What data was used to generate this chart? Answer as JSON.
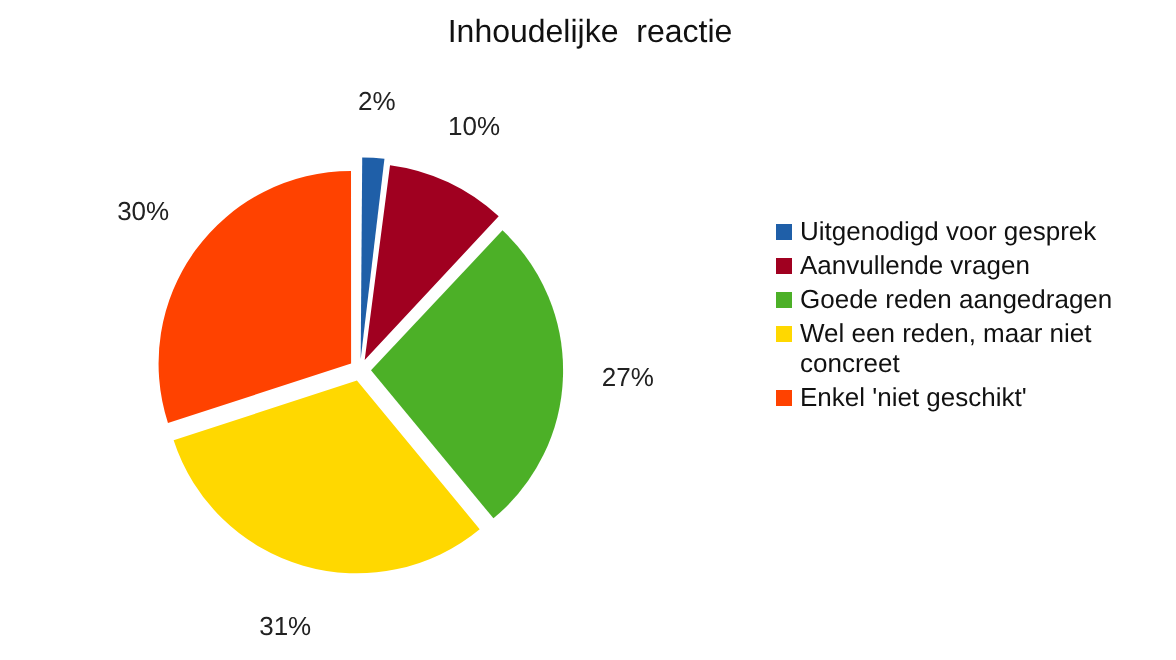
{
  "chart_data": {
    "type": "pie",
    "title": "Inhoudelijke  reactie",
    "categories": [
      "Uitgenodigd voor gesprek",
      "Aanvullende vragen",
      "Goede reden aangedragen",
      "Wel een reden, maar niet concreet",
      "Enkel 'niet geschikt'"
    ],
    "values": [
      2,
      10,
      27,
      31,
      30
    ],
    "colors": [
      "#1f5fa8",
      "#a00020",
      "#4cb027",
      "#ffd800",
      "#ff4200"
    ],
    "value_labels": [
      "2%",
      "10%",
      "27%",
      "31%",
      "30%"
    ],
    "legend": "right"
  }
}
